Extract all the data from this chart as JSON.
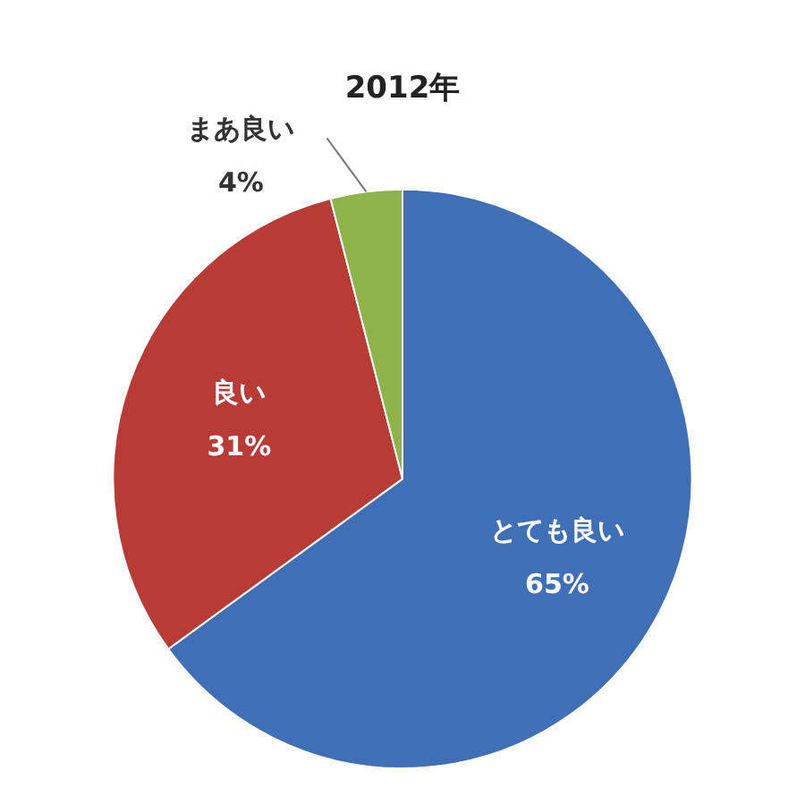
{
  "chart_data": {
    "type": "pie",
    "title": "2012年",
    "categories": [
      "とても良い",
      "良い",
      "まあ良い"
    ],
    "values": [
      65,
      31,
      4
    ],
    "value_labels": [
      "65%",
      "31%",
      "4%"
    ],
    "colors": [
      "#3f6fb6",
      "#b83b36",
      "#8db34b"
    ],
    "legend": false
  }
}
